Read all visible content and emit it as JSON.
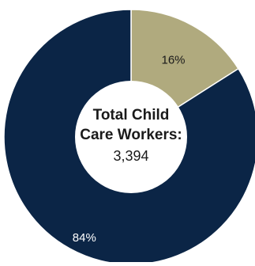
{
  "chart_data": {
    "type": "pie",
    "donut": true,
    "slices": [
      {
        "label": "16%",
        "value": 16,
        "color": "#b0aa7e",
        "text_color": "#1a1a1a"
      },
      {
        "label": "84%",
        "value": 84,
        "color": "#0b2546",
        "text_color": "#ffffff"
      }
    ],
    "center": {
      "title_line1": "Total Child",
      "title_line2": "Care Workers:",
      "value": "3,394"
    }
  }
}
